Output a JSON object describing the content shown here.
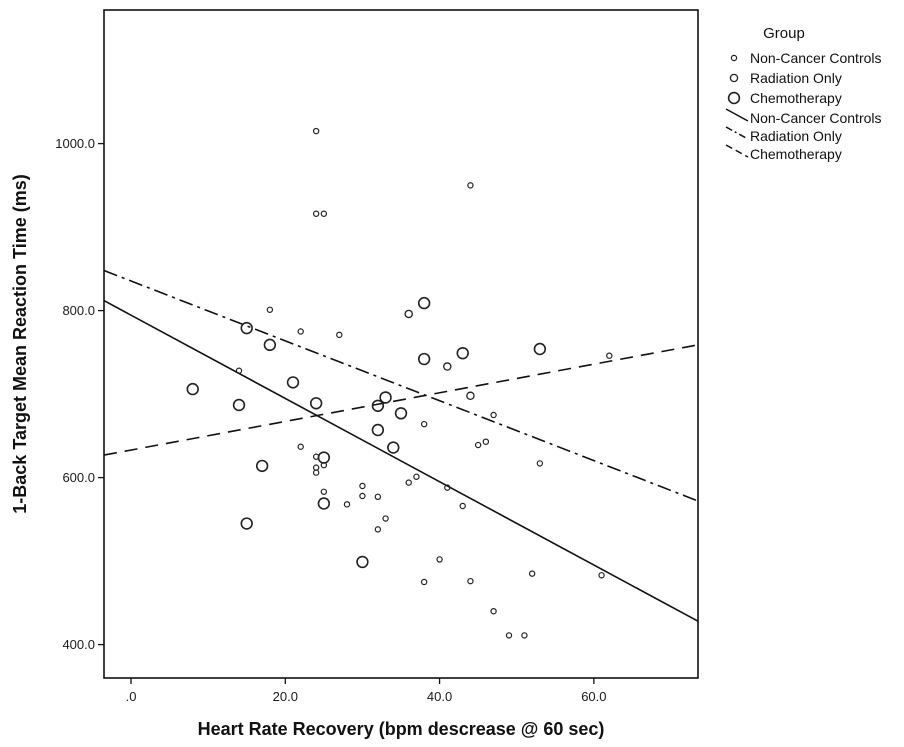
{
  "chart_data": {
    "type": "scatter",
    "xlabel": "Heart Rate Recovery (bpm descrease @ 60 sec)",
    "ylabel": "1-Back Target Mean Reaction Time (ms)",
    "xlim": [
      -3.5,
      73.5
    ],
    "ylim": [
      360,
      1160
    ],
    "x_ticks": [
      0,
      20,
      40,
      60
    ],
    "x_tick_labels": [
      ".0",
      "20.0",
      "40.0",
      "60.0"
    ],
    "y_ticks": [
      400,
      600,
      800,
      1000
    ],
    "y_tick_labels": [
      "400.0",
      "600.0",
      "800.0",
      "1000.0"
    ],
    "grid": false,
    "legend_title": "Group",
    "legend_position": "right",
    "series": [
      {
        "name": "Non-Cancer Controls",
        "marker": "small-circle",
        "points": [
          [
            24,
            1015
          ],
          [
            24,
            916
          ],
          [
            25,
            916
          ],
          [
            18,
            801
          ],
          [
            22,
            775
          ],
          [
            27,
            771
          ],
          [
            14,
            728
          ],
          [
            22,
            637
          ],
          [
            24,
            625
          ],
          [
            25,
            615
          ],
          [
            24,
            612
          ],
          [
            24,
            606
          ],
          [
            25,
            583
          ],
          [
            28,
            568
          ],
          [
            30,
            590
          ],
          [
            30,
            578
          ],
          [
            32,
            577
          ],
          [
            33,
            551
          ],
          [
            32,
            538
          ],
          [
            36,
            594
          ],
          [
            37,
            601
          ],
          [
            38,
            664
          ],
          [
            41,
            588
          ],
          [
            43,
            566
          ],
          [
            45,
            639
          ],
          [
            46,
            643
          ],
          [
            47,
            675
          ],
          [
            40,
            502
          ],
          [
            38,
            475
          ],
          [
            44,
            476
          ],
          [
            47,
            440
          ],
          [
            49,
            411
          ],
          [
            51,
            411
          ],
          [
            52,
            485
          ],
          [
            53,
            617
          ],
          [
            61,
            483
          ],
          [
            62,
            746
          ],
          [
            44,
            950
          ]
        ]
      },
      {
        "name": "Radiation Only",
        "marker": "medium-circle",
        "points": [
          [
            36,
            796
          ],
          [
            41,
            733
          ],
          [
            44,
            698
          ]
        ]
      },
      {
        "name": "Chemotherapy",
        "marker": "large-circle",
        "points": [
          [
            8,
            706
          ],
          [
            14,
            687
          ],
          [
            15,
            779
          ],
          [
            18,
            759
          ],
          [
            21,
            714
          ],
          [
            24,
            689
          ],
          [
            17,
            614
          ],
          [
            15,
            545
          ],
          [
            25,
            624
          ],
          [
            25,
            569
          ],
          [
            30,
            499
          ],
          [
            32,
            686
          ],
          [
            33,
            696
          ],
          [
            35,
            677
          ],
          [
            32,
            657
          ],
          [
            34,
            636
          ],
          [
            38,
            809
          ],
          [
            38,
            742
          ],
          [
            43,
            749
          ],
          [
            53,
            754
          ]
        ]
      }
    ],
    "fit_lines": [
      {
        "name": "Non-Cancer Controls",
        "style": "solid",
        "x": [
          -3.5,
          73.5
        ],
        "y": [
          812,
          428
        ]
      },
      {
        "name": "Radiation Only",
        "style": "dash-dot",
        "x": [
          -3.5,
          73.5
        ],
        "y": [
          848,
          572
        ]
      },
      {
        "name": "Chemotherapy",
        "style": "dashed",
        "x": [
          -3.5,
          73.5
        ],
        "y": [
          627,
          759
        ]
      }
    ]
  }
}
